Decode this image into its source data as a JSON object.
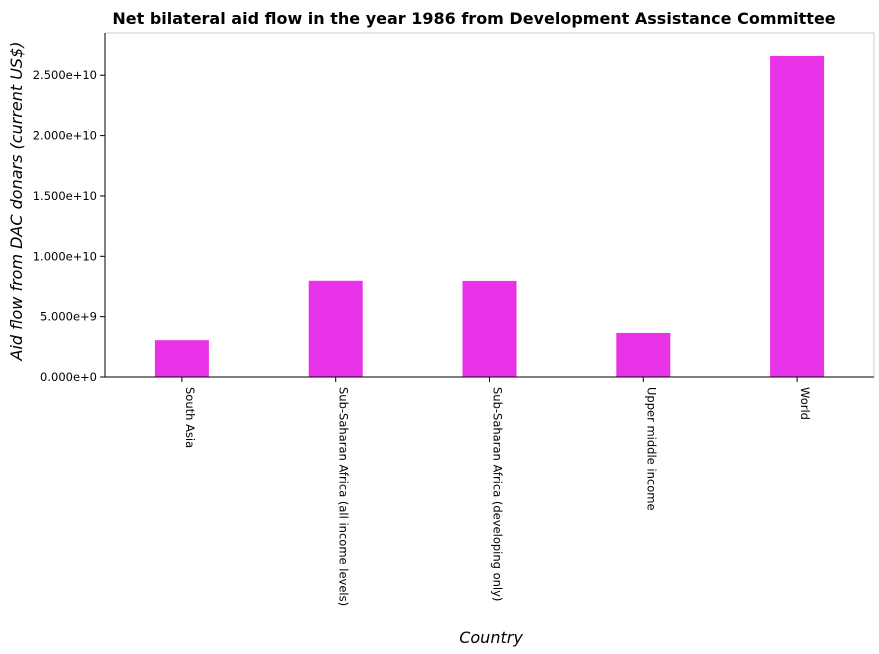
{
  "chart_data": {
    "type": "bar",
    "title": "Net bilateral aid flow in the year 1986 from Development Assistance Committee",
    "xlabel": "Country",
    "ylabel": "Aid flow from DAC donars (current US$)",
    "categories": [
      "South Asia",
      "Sub-Saharan Africa (all income levels)",
      "Sub-Saharan Africa (developing only)",
      "Upper middle income",
      "World"
    ],
    "values": [
      3050000000,
      7970000000,
      7960000000,
      3650000000,
      26600000000
    ],
    "ylim": [
      0,
      28500000000
    ],
    "yticks": [
      0,
      5000000000,
      10000000000,
      15000000000,
      20000000000,
      25000000000
    ],
    "ytick_labels": [
      "0.000e+0",
      "5.000e+9",
      "1.000e+10",
      "1.500e+10",
      "2.000e+10",
      "2.500e+10"
    ],
    "bar_color": "#e832e8",
    "grid": false,
    "legend": "none"
  }
}
